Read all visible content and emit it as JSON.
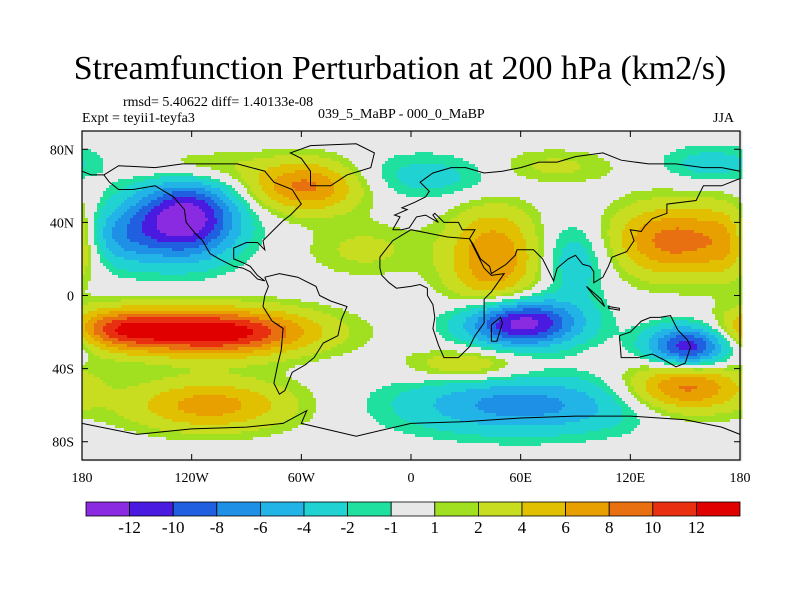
{
  "chart_data": {
    "type": "heatmap",
    "title": "Streamfunction Perturbation at 200 hPa (km2/s)",
    "stats_text": "rmsd= 5.40622 diff= 1.40133e-08",
    "experiment_text": "Expt = teyii1-teyfa3",
    "period_text": "039_5_MaBP - 000_0_MaBP",
    "season": "JJA",
    "xlim": [
      -180,
      180
    ],
    "ylim": [
      -90,
      90
    ],
    "x_ticks": [
      {
        "value": -180,
        "label": "180"
      },
      {
        "value": -120,
        "label": "120W"
      },
      {
        "value": -60,
        "label": "60W"
      },
      {
        "value": 0,
        "label": "0"
      },
      {
        "value": 60,
        "label": "60E"
      },
      {
        "value": 120,
        "label": "120E"
      },
      {
        "value": 180,
        "label": "180"
      }
    ],
    "y_ticks": [
      {
        "value": 80,
        "label": "80N"
      },
      {
        "value": 40,
        "label": "40N"
      },
      {
        "value": 0,
        "label": "0"
      },
      {
        "value": -40,
        "label": "40S"
      },
      {
        "value": -80,
        "label": "80S"
      }
    ],
    "colorbar": {
      "colors": [
        "#8a2be2",
        "#4a1ae0",
        "#2060e0",
        "#1e90e6",
        "#22b4e6",
        "#20d2d2",
        "#20e0a0",
        "#e8e8e8",
        "#a0e020",
        "#c8dc20",
        "#e0c000",
        "#e8a000",
        "#e87010",
        "#e83010",
        "#e00000"
      ],
      "labels": [
        "-12",
        "-10",
        "-8",
        "-6",
        "-4",
        "-2",
        "-1",
        "1",
        "2",
        "4",
        "6",
        "8",
        "10",
        "12"
      ],
      "levels": [
        -12,
        -10,
        -8,
        -6,
        -4,
        -2,
        -1,
        1,
        2,
        4,
        6,
        8,
        10,
        12
      ]
    },
    "field_centers": [
      {
        "lon": -123,
        "lat": 42,
        "amp": -14,
        "sx": 20,
        "sy": 15
      },
      {
        "lon": -162,
        "lat": 32,
        "amp": -6,
        "sx": 18,
        "sy": 12
      },
      {
        "lon": -108,
        "lat": -20,
        "amp": 14,
        "sx": 38,
        "sy": 9
      },
      {
        "lon": -160,
        "lat": -18,
        "amp": 7,
        "sx": 20,
        "sy": 8
      },
      {
        "lon": -110,
        "lat": -60,
        "amp": 7,
        "sx": 32,
        "sy": 10
      },
      {
        "lon": -57,
        "lat": 60,
        "amp": 9,
        "sx": 22,
        "sy": 10
      },
      {
        "lon": -118,
        "lat": 70,
        "amp": 3,
        "sx": 24,
        "sy": 7
      },
      {
        "lon": -25,
        "lat": 25,
        "amp": 2.5,
        "sx": 22,
        "sy": 10
      },
      {
        "lon": 45,
        "lat": 20,
        "amp": 8,
        "sx": 18,
        "sy": 20
      },
      {
        "lon": 12,
        "lat": 65,
        "amp": -3,
        "sx": 40,
        "sy": 9
      },
      {
        "lon": 75,
        "lat": 70,
        "amp": 3,
        "sx": 25,
        "sy": 7
      },
      {
        "lon": 60,
        "lat": -15,
        "amp": -14,
        "sx": 22,
        "sy": 9
      },
      {
        "lon": 60,
        "lat": -60,
        "amp": -7,
        "sx": 45,
        "sy": 11
      },
      {
        "lon": 30,
        "lat": -38,
        "amp": 4,
        "sx": 22,
        "sy": 6
      },
      {
        "lon": 90,
        "lat": 20,
        "amp": -4,
        "sx": 14,
        "sy": 15
      },
      {
        "lon": 145,
        "lat": 30,
        "amp": 9,
        "sx": 26,
        "sy": 14
      },
      {
        "lon": 152,
        "lat": -28,
        "amp": -12,
        "sx": 16,
        "sy": 8
      },
      {
        "lon": 150,
        "lat": -50,
        "amp": 9,
        "sx": 22,
        "sy": 10
      },
      {
        "lon": 165,
        "lat": 72,
        "amp": -3,
        "sx": 20,
        "sy": 7
      },
      {
        "lon": 175,
        "lat": 30,
        "amp": 4,
        "sx": 10,
        "sy": 14
      }
    ]
  }
}
